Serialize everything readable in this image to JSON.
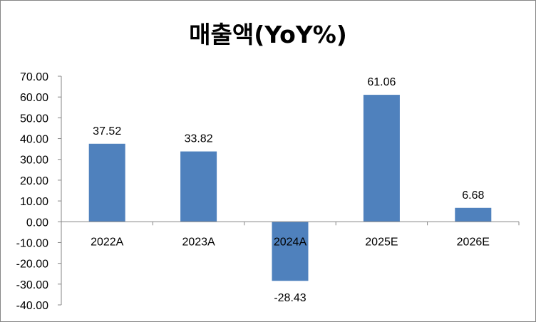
{
  "chart_data": {
    "type": "bar",
    "title": "매출액(YoY%)",
    "categories": [
      "2022A",
      "2023A",
      "2024A",
      "2025E",
      "2026E"
    ],
    "values": [
      37.52,
      33.82,
      -28.43,
      61.06,
      6.68
    ],
    "value_labels": [
      "37.52",
      "33.82",
      "-28.43",
      "61.06",
      "6.68"
    ],
    "ylim": [
      -40,
      70
    ],
    "yticks": [
      70,
      60,
      50,
      40,
      30,
      20,
      10,
      0,
      -10,
      -20,
      -30,
      -40
    ],
    "ytick_labels": [
      "70.00",
      "60.00",
      "50.00",
      "40.00",
      "30.00",
      "20.00",
      "10.00",
      "0.00",
      "-10.00",
      "-20.00",
      "-30.00",
      "-40.00"
    ],
    "xlabel": "",
    "ylabel": "",
    "grid": false,
    "legend": "none",
    "bar_color": "#4F81BD"
  }
}
